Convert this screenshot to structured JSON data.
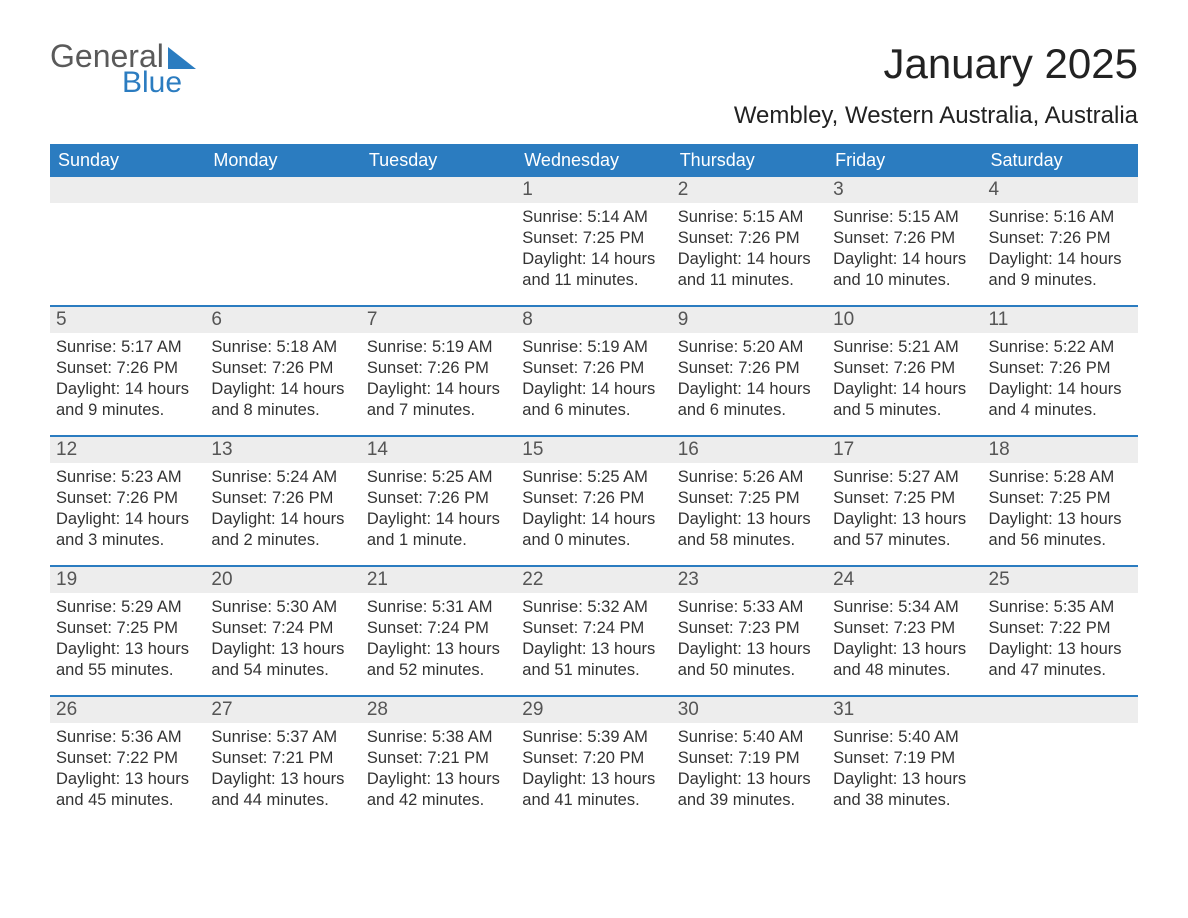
{
  "logo": {
    "word1": "General",
    "word2": "Blue"
  },
  "title": "January 2025",
  "subtitle": "Wembley, Western Australia, Australia",
  "colors": {
    "header_bg": "#2b7cc0",
    "header_text": "#ffffff",
    "daynum_bg": "#ededed",
    "daynum_text": "#555555",
    "body_text": "#333333",
    "week_border": "#2b7cc0",
    "page_bg": "#ffffff",
    "logo_gray": "#5a5a5a",
    "logo_blue": "#2b7cc0"
  },
  "typography": {
    "title_fontsize": 42,
    "subtitle_fontsize": 24,
    "header_fontsize": 18,
    "daynum_fontsize": 19,
    "body_fontsize": 16.5,
    "font_family": "Arial"
  },
  "calendar": {
    "day_headers": [
      "Sunday",
      "Monday",
      "Tuesday",
      "Wednesday",
      "Thursday",
      "Friday",
      "Saturday"
    ],
    "weeks": [
      [
        {
          "empty": true
        },
        {
          "empty": true
        },
        {
          "empty": true
        },
        {
          "day": "1",
          "sunrise": "Sunrise: 5:14 AM",
          "sunset": "Sunset: 7:25 PM",
          "daylight1": "Daylight: 14 hours",
          "daylight2": "and 11 minutes."
        },
        {
          "day": "2",
          "sunrise": "Sunrise: 5:15 AM",
          "sunset": "Sunset: 7:26 PM",
          "daylight1": "Daylight: 14 hours",
          "daylight2": "and 11 minutes."
        },
        {
          "day": "3",
          "sunrise": "Sunrise: 5:15 AM",
          "sunset": "Sunset: 7:26 PM",
          "daylight1": "Daylight: 14 hours",
          "daylight2": "and 10 minutes."
        },
        {
          "day": "4",
          "sunrise": "Sunrise: 5:16 AM",
          "sunset": "Sunset: 7:26 PM",
          "daylight1": "Daylight: 14 hours",
          "daylight2": "and 9 minutes."
        }
      ],
      [
        {
          "day": "5",
          "sunrise": "Sunrise: 5:17 AM",
          "sunset": "Sunset: 7:26 PM",
          "daylight1": "Daylight: 14 hours",
          "daylight2": "and 9 minutes."
        },
        {
          "day": "6",
          "sunrise": "Sunrise: 5:18 AM",
          "sunset": "Sunset: 7:26 PM",
          "daylight1": "Daylight: 14 hours",
          "daylight2": "and 8 minutes."
        },
        {
          "day": "7",
          "sunrise": "Sunrise: 5:19 AM",
          "sunset": "Sunset: 7:26 PM",
          "daylight1": "Daylight: 14 hours",
          "daylight2": "and 7 minutes."
        },
        {
          "day": "8",
          "sunrise": "Sunrise: 5:19 AM",
          "sunset": "Sunset: 7:26 PM",
          "daylight1": "Daylight: 14 hours",
          "daylight2": "and 6 minutes."
        },
        {
          "day": "9",
          "sunrise": "Sunrise: 5:20 AM",
          "sunset": "Sunset: 7:26 PM",
          "daylight1": "Daylight: 14 hours",
          "daylight2": "and 6 minutes."
        },
        {
          "day": "10",
          "sunrise": "Sunrise: 5:21 AM",
          "sunset": "Sunset: 7:26 PM",
          "daylight1": "Daylight: 14 hours",
          "daylight2": "and 5 minutes."
        },
        {
          "day": "11",
          "sunrise": "Sunrise: 5:22 AM",
          "sunset": "Sunset: 7:26 PM",
          "daylight1": "Daylight: 14 hours",
          "daylight2": "and 4 minutes."
        }
      ],
      [
        {
          "day": "12",
          "sunrise": "Sunrise: 5:23 AM",
          "sunset": "Sunset: 7:26 PM",
          "daylight1": "Daylight: 14 hours",
          "daylight2": "and 3 minutes."
        },
        {
          "day": "13",
          "sunrise": "Sunrise: 5:24 AM",
          "sunset": "Sunset: 7:26 PM",
          "daylight1": "Daylight: 14 hours",
          "daylight2": "and 2 minutes."
        },
        {
          "day": "14",
          "sunrise": "Sunrise: 5:25 AM",
          "sunset": "Sunset: 7:26 PM",
          "daylight1": "Daylight: 14 hours",
          "daylight2": "and 1 minute."
        },
        {
          "day": "15",
          "sunrise": "Sunrise: 5:25 AM",
          "sunset": "Sunset: 7:26 PM",
          "daylight1": "Daylight: 14 hours",
          "daylight2": "and 0 minutes."
        },
        {
          "day": "16",
          "sunrise": "Sunrise: 5:26 AM",
          "sunset": "Sunset: 7:25 PM",
          "daylight1": "Daylight: 13 hours",
          "daylight2": "and 58 minutes."
        },
        {
          "day": "17",
          "sunrise": "Sunrise: 5:27 AM",
          "sunset": "Sunset: 7:25 PM",
          "daylight1": "Daylight: 13 hours",
          "daylight2": "and 57 minutes."
        },
        {
          "day": "18",
          "sunrise": "Sunrise: 5:28 AM",
          "sunset": "Sunset: 7:25 PM",
          "daylight1": "Daylight: 13 hours",
          "daylight2": "and 56 minutes."
        }
      ],
      [
        {
          "day": "19",
          "sunrise": "Sunrise: 5:29 AM",
          "sunset": "Sunset: 7:25 PM",
          "daylight1": "Daylight: 13 hours",
          "daylight2": "and 55 minutes."
        },
        {
          "day": "20",
          "sunrise": "Sunrise: 5:30 AM",
          "sunset": "Sunset: 7:24 PM",
          "daylight1": "Daylight: 13 hours",
          "daylight2": "and 54 minutes."
        },
        {
          "day": "21",
          "sunrise": "Sunrise: 5:31 AM",
          "sunset": "Sunset: 7:24 PM",
          "daylight1": "Daylight: 13 hours",
          "daylight2": "and 52 minutes."
        },
        {
          "day": "22",
          "sunrise": "Sunrise: 5:32 AM",
          "sunset": "Sunset: 7:24 PM",
          "daylight1": "Daylight: 13 hours",
          "daylight2": "and 51 minutes."
        },
        {
          "day": "23",
          "sunrise": "Sunrise: 5:33 AM",
          "sunset": "Sunset: 7:23 PM",
          "daylight1": "Daylight: 13 hours",
          "daylight2": "and 50 minutes."
        },
        {
          "day": "24",
          "sunrise": "Sunrise: 5:34 AM",
          "sunset": "Sunset: 7:23 PM",
          "daylight1": "Daylight: 13 hours",
          "daylight2": "and 48 minutes."
        },
        {
          "day": "25",
          "sunrise": "Sunrise: 5:35 AM",
          "sunset": "Sunset: 7:22 PM",
          "daylight1": "Daylight: 13 hours",
          "daylight2": "and 47 minutes."
        }
      ],
      [
        {
          "day": "26",
          "sunrise": "Sunrise: 5:36 AM",
          "sunset": "Sunset: 7:22 PM",
          "daylight1": "Daylight: 13 hours",
          "daylight2": "and 45 minutes."
        },
        {
          "day": "27",
          "sunrise": "Sunrise: 5:37 AM",
          "sunset": "Sunset: 7:21 PM",
          "daylight1": "Daylight: 13 hours",
          "daylight2": "and 44 minutes."
        },
        {
          "day": "28",
          "sunrise": "Sunrise: 5:38 AM",
          "sunset": "Sunset: 7:21 PM",
          "daylight1": "Daylight: 13 hours",
          "daylight2": "and 42 minutes."
        },
        {
          "day": "29",
          "sunrise": "Sunrise: 5:39 AM",
          "sunset": "Sunset: 7:20 PM",
          "daylight1": "Daylight: 13 hours",
          "daylight2": "and 41 minutes."
        },
        {
          "day": "30",
          "sunrise": "Sunrise: 5:40 AM",
          "sunset": "Sunset: 7:19 PM",
          "daylight1": "Daylight: 13 hours",
          "daylight2": "and 39 minutes."
        },
        {
          "day": "31",
          "sunrise": "Sunrise: 5:40 AM",
          "sunset": "Sunset: 7:19 PM",
          "daylight1": "Daylight: 13 hours",
          "daylight2": "and 38 minutes."
        },
        {
          "empty": true
        }
      ]
    ]
  }
}
